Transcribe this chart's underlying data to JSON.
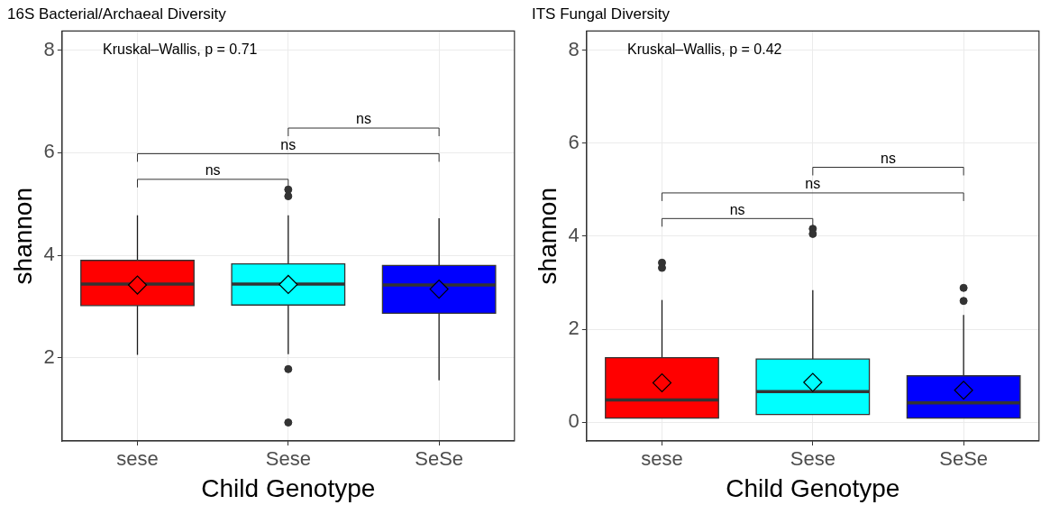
{
  "chart_data": [
    {
      "type": "box",
      "title": "16S Bacterial/Archaeal Diversity",
      "xlabel": "Child Genotype",
      "ylabel": "shannon",
      "categories": [
        "sese",
        "Sese",
        "SeSe"
      ],
      "colors": [
        "#ff0000",
        "#00ffff",
        "#0000ff"
      ],
      "boxes": [
        {
          "low": 2.06,
          "q1": 3.02,
          "median": 3.44,
          "q3": 3.9,
          "high": 4.78,
          "mean": 3.42
        },
        {
          "low": 2.07,
          "q1": 3.03,
          "median": 3.44,
          "q3": 3.83,
          "high": 4.78,
          "mean": 3.43,
          "outliers": [
            5.28,
            5.15,
            1.78,
            0.74
          ]
        },
        {
          "low": 1.56,
          "q1": 2.87,
          "median": 3.42,
          "q3": 3.8,
          "high": 4.72,
          "mean": 3.34
        }
      ],
      "ylim": [
        0.38,
        8.37
      ],
      "yticks": [
        2,
        4,
        6,
        8
      ],
      "grid": true,
      "annotations": [
        "Kruskal–Wallis, p = 0.71",
        "ns",
        "ns",
        "ns"
      ]
    },
    {
      "type": "box",
      "title": "ITS Fungal Diversity",
      "xlabel": "Child Genotype",
      "ylabel": "shannon",
      "categories": [
        "sese",
        "Sese",
        "SeSe"
      ],
      "colors": [
        "#ff0000",
        "#00ffff",
        "#0000ff"
      ],
      "boxes": [
        {
          "low": 0.09,
          "q1": 0.09,
          "median": 0.48,
          "q3": 1.39,
          "high": 2.63,
          "mean": 0.85,
          "outliers": [
            3.43,
            3.32
          ]
        },
        {
          "low": 0.17,
          "q1": 0.17,
          "median": 0.66,
          "q3": 1.36,
          "high": 2.84,
          "mean": 0.86,
          "outliers": [
            4.16,
            4.05
          ]
        },
        {
          "low": 0.09,
          "q1": 0.09,
          "median": 0.42,
          "q3": 1.0,
          "high": 2.31,
          "mean": 0.69,
          "outliers": [
            2.89,
            2.61
          ]
        }
      ],
      "ylim": [
        -0.4,
        8.41
      ],
      "yticks": [
        0,
        2,
        4,
        6,
        8
      ],
      "grid": true,
      "annotations": [
        "Kruskal–Wallis, p = 0.42",
        "ns",
        "ns",
        "ns"
      ]
    }
  ]
}
